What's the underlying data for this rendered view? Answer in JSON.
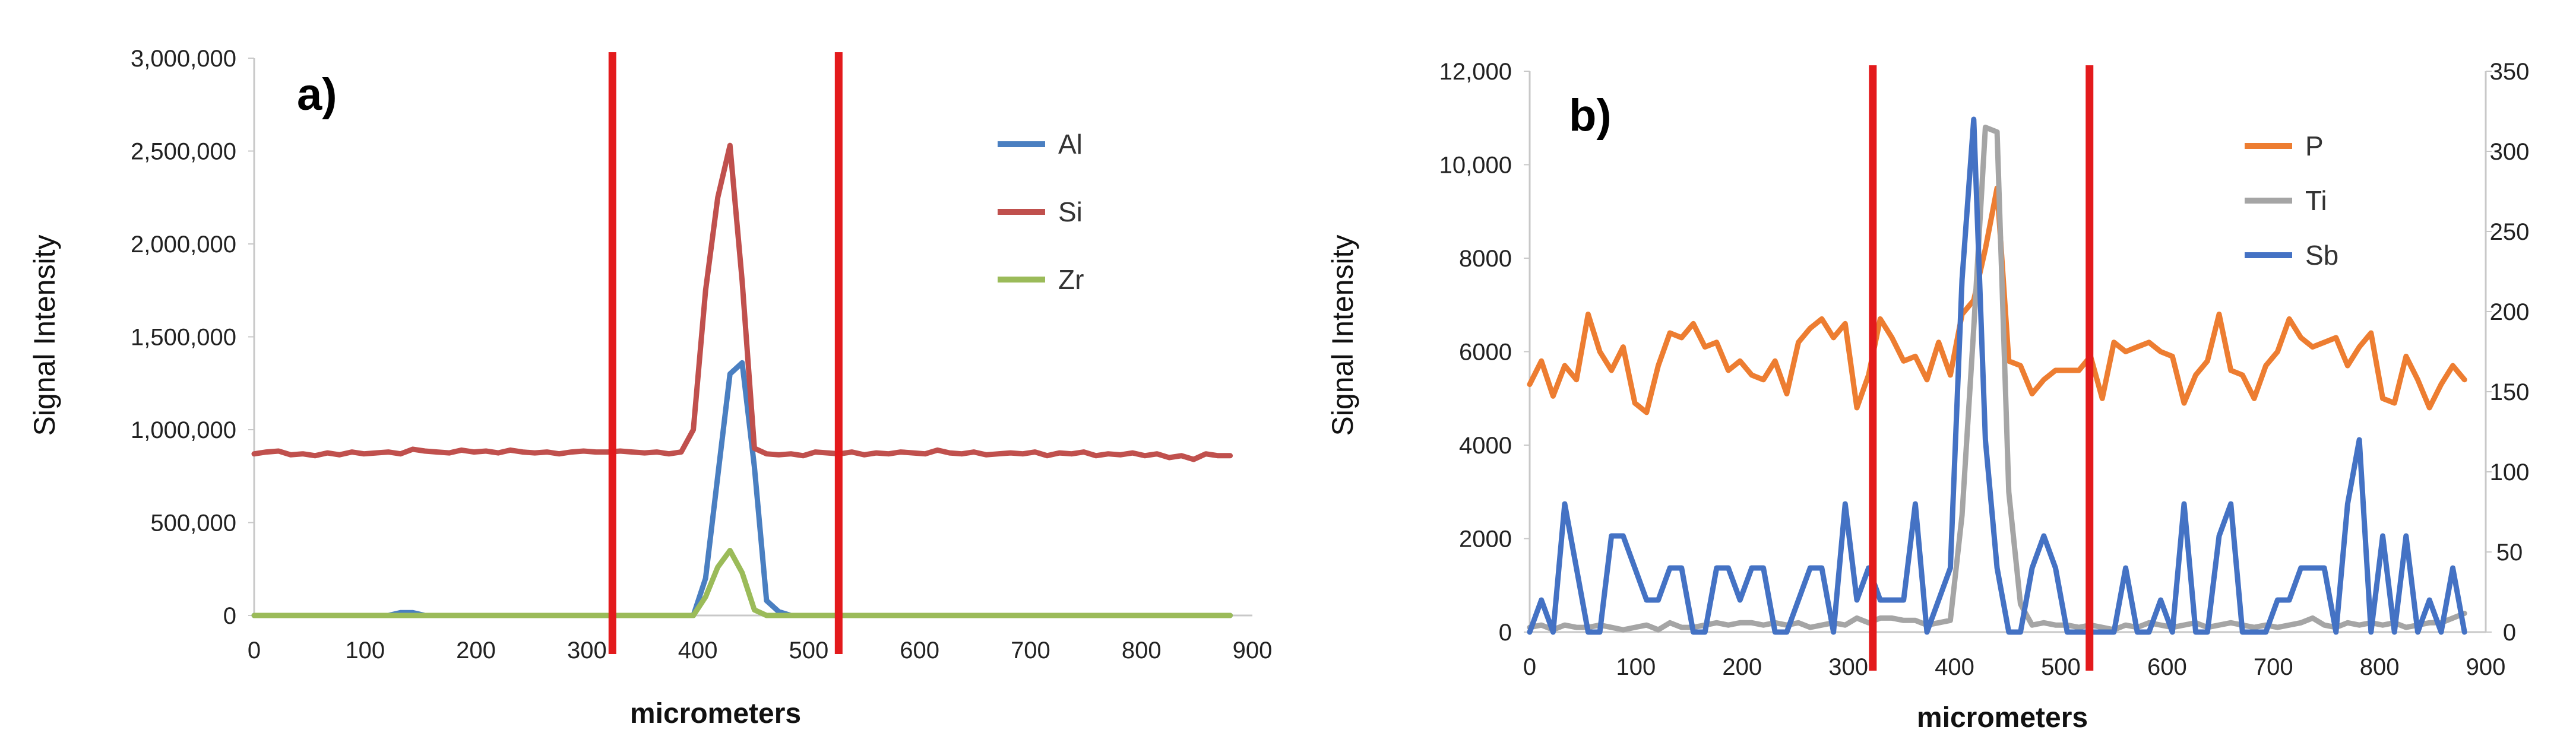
{
  "chart_data": [
    {
      "type": "line",
      "panel_label": "a)",
      "xlabel": "micrometers",
      "ylabel": "Signal Intensity",
      "xlim": [
        0,
        900
      ],
      "ylim": [
        0,
        3000000
      ],
      "x_ticks": [
        0,
        100,
        200,
        300,
        400,
        500,
        600,
        700,
        800,
        900
      ],
      "y_ticks": [
        0,
        500000,
        1000000,
        1500000,
        2000000,
        2500000,
        3000000
      ],
      "y_tick_labels": [
        "0",
        "500,000",
        "1,000,000",
        "1,500,000",
        "2,000,000",
        "2,500,000",
        "3,000,000"
      ],
      "legend_position": "top-right",
      "vertical_markers": [
        {
          "x": 323,
          "color": "#e31a1c"
        },
        {
          "x": 527,
          "color": "#e31a1c"
        }
      ],
      "x": [
        0,
        11,
        22,
        33,
        44,
        55,
        66,
        77,
        88,
        99,
        110,
        121,
        132,
        143,
        154,
        165,
        176,
        187,
        198,
        209,
        220,
        231,
        242,
        253,
        264,
        275,
        286,
        297,
        308,
        319,
        330,
        341,
        352,
        363,
        374,
        385,
        396,
        407,
        418,
        429,
        440,
        451,
        462,
        473,
        484,
        495,
        506,
        517,
        528,
        539,
        550,
        561,
        572,
        583,
        594,
        605,
        616,
        627,
        638,
        649,
        660,
        671,
        682,
        693,
        704,
        715,
        726,
        737,
        748,
        759,
        770,
        781,
        792,
        803,
        814,
        825,
        836,
        847,
        858,
        869,
        880
      ],
      "series": [
        {
          "name": "Al",
          "color": "#4a7fc1",
          "values": [
            0,
            0,
            0,
            0,
            0,
            0,
            0,
            0,
            0,
            0,
            0,
            0,
            15000,
            15000,
            0,
            0,
            0,
            0,
            0,
            0,
            0,
            0,
            0,
            0,
            0,
            0,
            0,
            0,
            0,
            0,
            0,
            0,
            0,
            0,
            0,
            0,
            0,
            200000,
            750000,
            1300000,
            1360000,
            800000,
            80000,
            20000,
            0,
            0,
            0,
            0,
            0,
            0,
            0,
            0,
            0,
            0,
            0,
            0,
            0,
            0,
            0,
            0,
            0,
            0,
            0,
            0,
            0,
            0,
            0,
            0,
            0,
            0,
            0,
            0,
            0,
            0,
            0,
            0,
            0,
            0,
            0,
            0,
            0
          ]
        },
        {
          "name": "Si",
          "color": "#c0504d",
          "values": [
            870000,
            880000,
            885000,
            865000,
            870000,
            860000,
            875000,
            865000,
            880000,
            870000,
            875000,
            880000,
            870000,
            895000,
            885000,
            880000,
            875000,
            890000,
            880000,
            885000,
            875000,
            890000,
            880000,
            875000,
            880000,
            870000,
            880000,
            885000,
            880000,
            880000,
            885000,
            880000,
            875000,
            880000,
            870000,
            880000,
            1000000,
            1750000,
            2250000,
            2530000,
            1800000,
            900000,
            870000,
            865000,
            870000,
            860000,
            880000,
            875000,
            870000,
            880000,
            865000,
            875000,
            870000,
            880000,
            875000,
            870000,
            890000,
            875000,
            870000,
            880000,
            865000,
            870000,
            875000,
            870000,
            880000,
            860000,
            875000,
            870000,
            880000,
            860000,
            870000,
            865000,
            875000,
            860000,
            870000,
            850000,
            860000,
            840000,
            870000,
            860000,
            860000
          ]
        },
        {
          "name": "Zr",
          "color": "#9bbb59",
          "values": [
            0,
            0,
            0,
            0,
            0,
            0,
            0,
            0,
            0,
            0,
            0,
            0,
            0,
            0,
            0,
            0,
            0,
            0,
            0,
            0,
            0,
            0,
            0,
            0,
            0,
            0,
            0,
            0,
            0,
            0,
            0,
            0,
            0,
            0,
            0,
            0,
            0,
            100000,
            260000,
            350000,
            230000,
            30000,
            0,
            0,
            0,
            0,
            0,
            0,
            0,
            0,
            0,
            0,
            0,
            0,
            0,
            0,
            0,
            0,
            0,
            0,
            0,
            0,
            0,
            0,
            0,
            0,
            0,
            0,
            0,
            0,
            0,
            0,
            0,
            0,
            0,
            0,
            0,
            0,
            0,
            0,
            0
          ]
        }
      ]
    },
    {
      "type": "line",
      "panel_label": "b)",
      "xlabel": "micrometers",
      "ylabel": "Signal Intensity",
      "xlim": [
        0,
        900
      ],
      "ylim": [
        0,
        12000
      ],
      "y2lim": [
        0,
        350
      ],
      "x_ticks": [
        0,
        100,
        200,
        300,
        400,
        500,
        600,
        700,
        800,
        900
      ],
      "y_ticks": [
        0,
        2000,
        4000,
        6000,
        8000,
        10000,
        12000
      ],
      "y_tick_labels": [
        "0",
        "2000",
        "4000",
        "6000",
        "8000",
        "10,000",
        "12,000"
      ],
      "y2_ticks": [
        0,
        50,
        100,
        150,
        200,
        250,
        300,
        350
      ],
      "legend_position": "top-right",
      "vertical_markers": [
        {
          "x": 323,
          "color": "#e31a1c"
        },
        {
          "x": 527,
          "color": "#e31a1c"
        }
      ],
      "x": [
        0,
        11,
        22,
        33,
        44,
        55,
        66,
        77,
        88,
        99,
        110,
        121,
        132,
        143,
        154,
        165,
        176,
        187,
        198,
        209,
        220,
        231,
        242,
        253,
        264,
        275,
        286,
        297,
        308,
        319,
        330,
        341,
        352,
        363,
        374,
        385,
        396,
        407,
        418,
        429,
        440,
        451,
        462,
        473,
        484,
        495,
        506,
        517,
        528,
        539,
        550,
        561,
        572,
        583,
        594,
        605,
        616,
        627,
        638,
        649,
        660,
        671,
        682,
        693,
        704,
        715,
        726,
        737,
        748,
        759,
        770,
        781,
        792,
        803,
        814,
        825,
        836,
        847,
        858,
        869,
        880
      ],
      "series": [
        {
          "name": "P",
          "color": "#ed7d31",
          "axis": "left",
          "values": [
            5300,
            5800,
            5050,
            5700,
            5400,
            6800,
            6000,
            5600,
            6100,
            4900,
            4700,
            5700,
            6400,
            6300,
            6600,
            6100,
            6200,
            5600,
            5800,
            5500,
            5400,
            5800,
            5100,
            6200,
            6500,
            6700,
            6300,
            6600,
            4800,
            5500,
            6700,
            6300,
            5800,
            5900,
            5400,
            6200,
            5500,
            6800,
            7100,
            8200,
            9500,
            5800,
            5700,
            5100,
            5400,
            5600,
            5600,
            5600,
            5900,
            5000,
            6200,
            6000,
            6100,
            6200,
            6000,
            5900,
            4900,
            5500,
            5800,
            6800,
            5600,
            5500,
            5000,
            5700,
            6000,
            6700,
            6300,
            6100,
            6200,
            6300,
            5700,
            6100,
            6400,
            5000,
            4900,
            5900,
            5400,
            4800,
            5300,
            5700,
            5400
          ]
        },
        {
          "name": "Ti",
          "color": "#a5a5a5",
          "axis": "left",
          "values": [
            100,
            150,
            50,
            150,
            100,
            100,
            150,
            100,
            50,
            100,
            150,
            50,
            200,
            100,
            100,
            150,
            200,
            150,
            200,
            200,
            150,
            200,
            150,
            200,
            100,
            150,
            200,
            150,
            300,
            200,
            300,
            300,
            250,
            250,
            150,
            200,
            250,
            2500,
            6500,
            10800,
            10700,
            3000,
            600,
            150,
            200,
            150,
            150,
            100,
            150,
            100,
            50,
            150,
            100,
            200,
            150,
            100,
            150,
            200,
            100,
            150,
            200,
            150,
            100,
            150,
            100,
            150,
            200,
            300,
            150,
            100,
            200,
            150,
            200,
            150,
            200,
            100,
            150,
            200,
            200,
            300,
            400
          ]
        },
        {
          "name": "Sb",
          "color": "#4472c4",
          "axis": "right",
          "values": [
            0,
            20,
            0,
            80,
            40,
            0,
            0,
            60,
            60,
            40,
            20,
            20,
            40,
            40,
            0,
            0,
            40,
            40,
            20,
            40,
            40,
            0,
            0,
            20,
            40,
            40,
            0,
            80,
            20,
            40,
            20,
            20,
            20,
            80,
            0,
            20,
            40,
            220,
            320,
            120,
            40,
            0,
            0,
            40,
            60,
            40,
            0,
            0,
            0,
            0,
            0,
            40,
            0,
            0,
            20,
            0,
            80,
            0,
            0,
            60,
            80,
            0,
            0,
            0,
            20,
            20,
            40,
            40,
            40,
            0,
            80,
            120,
            0,
            60,
            0,
            60,
            0,
            20,
            0,
            40,
            0
          ]
        }
      ]
    }
  ]
}
